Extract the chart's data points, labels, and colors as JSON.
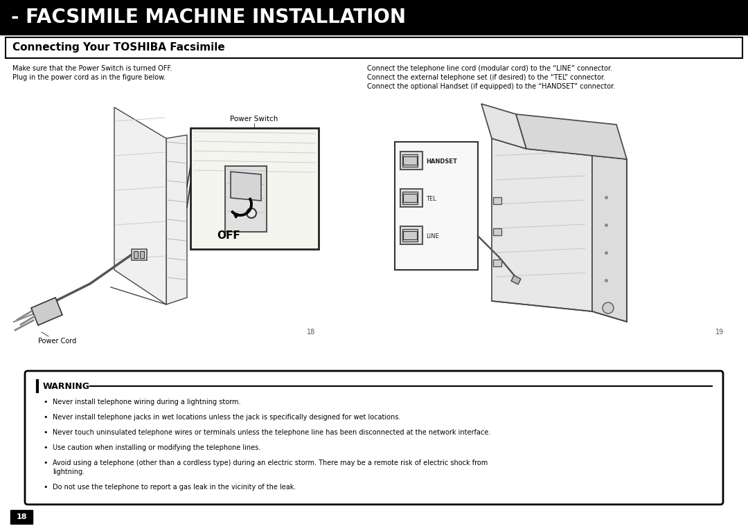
{
  "title": "- FACSIMILE MACHINE INSTALLATION",
  "subtitle": "Connecting Your TOSHIBA Facsimile",
  "title_bg": "#000000",
  "title_color": "#ffffff",
  "subtitle_bg": "#ffffff",
  "subtitle_color": "#000000",
  "body_bg": "#ffffff",
  "left_text_line1": "Make sure that the Power Switch is turned OFF.",
  "left_text_line2": "Plug in the power cord as in the figure below.",
  "right_text_line1": "Connect the telephone line cord (modular cord) to the “LINE” connector.",
  "right_text_line2": "Connect the external telephone set (if desired) to the “TEL” connector.",
  "right_text_line3": "Connect the optional Handset (if equipped) to the “HANDSET” connector.",
  "left_caption1": "Power Switch",
  "left_caption2": "Power Cord",
  "left_page_num": "18",
  "right_page_num": "19",
  "page_num_footer": "18",
  "warning_title": "WARNING",
  "warning_bullets": [
    "Never install telephone wiring during a lightning storm.",
    "Never install telephone jacks in wet locations unless the jack is specifically designed for wet locations.",
    "Never touch uninsulated telephone wires or terminals unless the telephone line has been disconnected at the network interface.",
    "Use caution when installing or modifying the telephone lines.",
    "Avoid using a telephone (other than a cordless type) during an electric storm. There may be a remote risk of electric shock from\nlightning.",
    "Do not use the telephone to report a gas leak in the vicinity of the leak."
  ]
}
